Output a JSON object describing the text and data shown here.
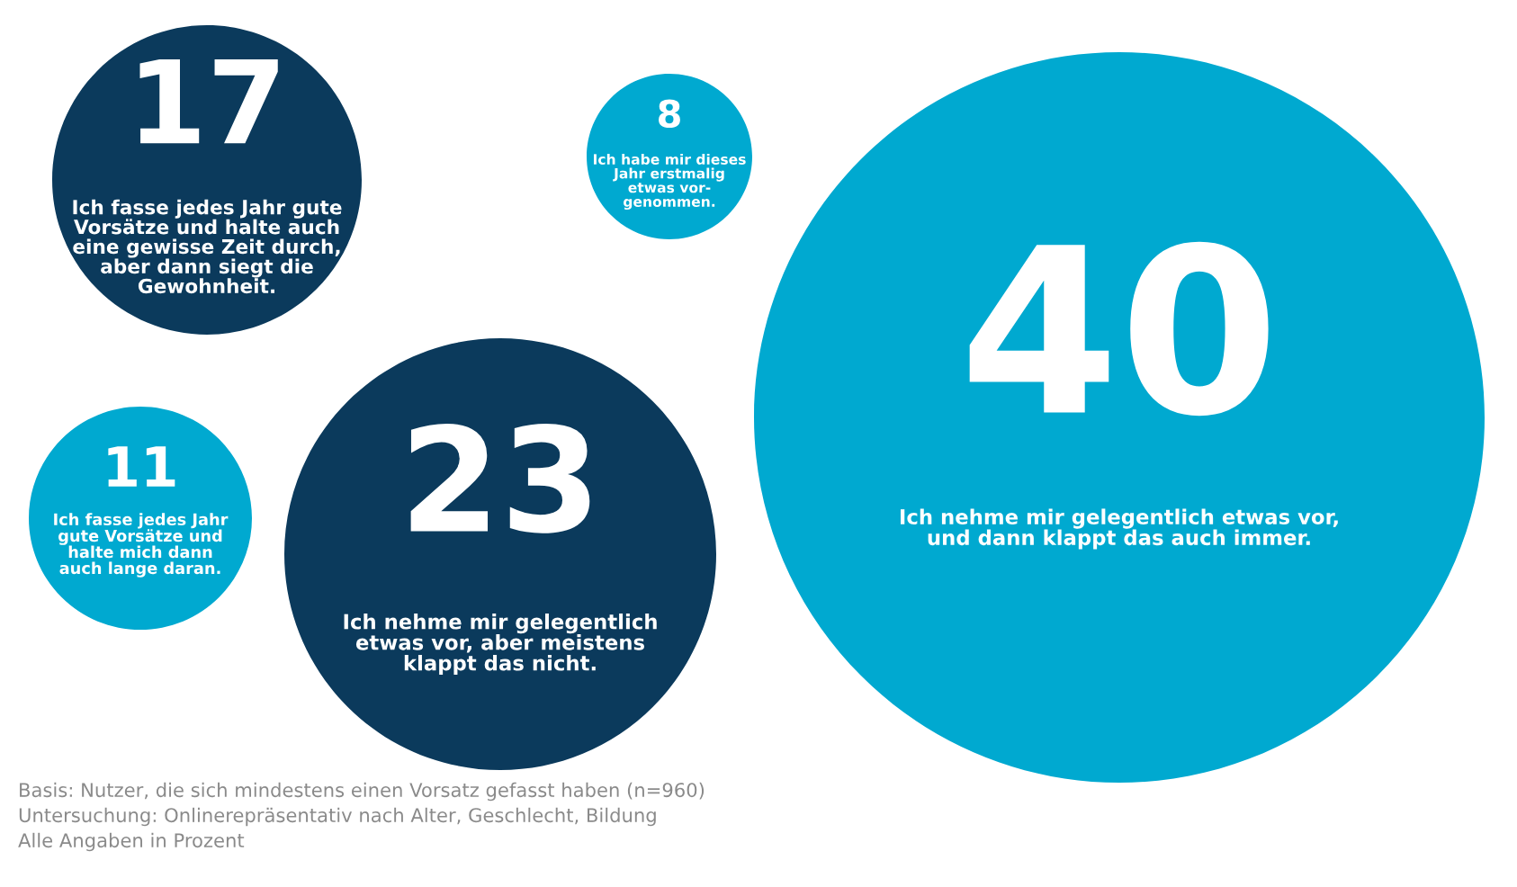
{
  "chart_data": {
    "type": "other",
    "categories": [
      "Ich fasse jedes Jahr gute\nVorsätze und halte auch\neine gewisse Zeit durch,\naber dann siegt die\nGewohnheit.",
      "Ich habe mir dieses\nJahr erstmalig\netwas vor-\ngenommen.",
      "Ich nehme mir gelegentlich etwas vor,\nund dann klappt das auch immer.",
      "Ich fasse jedes Jahr\ngute Vorsätze und\nhalte mich dann\nauch lange daran.",
      "Ich nehme mir gelegentlich\netwas vor, aber meistens\nklappt das nicht."
    ],
    "values": [
      17,
      8,
      40,
      11,
      23
    ],
    "data_labels": true,
    "colors": [
      "#0b3a5c",
      "#00a9d0",
      "#00a9d0",
      "#00a9d0",
      "#0b3a5c"
    ],
    "annotations": [
      "Basis: Nutzer, die sich mindestens einen Vorsatz gefasst haben (n=960)",
      "Untersuchung: Onlinerepräsentativ nach Alter, Geschlecht, Bildung",
      "Alle Angaben in Prozent"
    ]
  }
}
